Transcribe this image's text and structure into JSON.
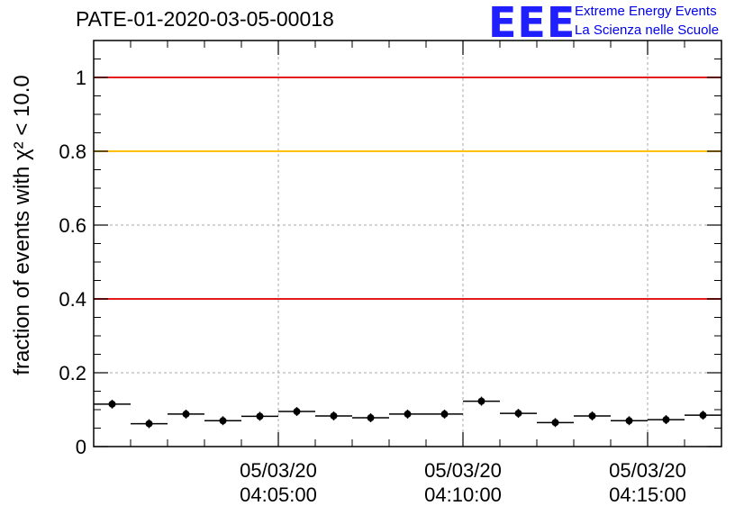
{
  "chart_data": {
    "type": "scatter",
    "title": "PATE-01-2020-03-05-00018",
    "ylabel": "fraction of events with χ² < 10.0",
    "xlabel": "",
    "ylim": [
      0,
      1.1
    ],
    "grid": true,
    "x_tick_labels": [
      {
        "date": "05/03/20",
        "time": "04:05:00"
      },
      {
        "date": "05/03/20",
        "time": "04:10:00"
      },
      {
        "date": "05/03/20",
        "time": "04:15:00"
      }
    ],
    "y_tick_labels": [
      "0",
      "0.2",
      "0.4",
      "0.6",
      "0.8",
      "1"
    ],
    "y_ticks": [
      0,
      0.2,
      0.4,
      0.6,
      0.8,
      1.0
    ],
    "reference_lines": [
      {
        "y": 1.0,
        "color": "#e31a1c"
      },
      {
        "y": 0.8,
        "color": "#ffc000"
      },
      {
        "y": 0.4,
        "color": "#e31a1c"
      }
    ],
    "points": [
      {
        "x": "04:00:30",
        "y": 0.115
      },
      {
        "x": "04:01:30",
        "y": 0.062
      },
      {
        "x": "04:02:30",
        "y": 0.088
      },
      {
        "x": "04:03:30",
        "y": 0.07
      },
      {
        "x": "04:04:30",
        "y": 0.082
      },
      {
        "x": "04:05:30",
        "y": 0.095
      },
      {
        "x": "04:06:30",
        "y": 0.083
      },
      {
        "x": "04:07:30",
        "y": 0.078
      },
      {
        "x": "04:08:30",
        "y": 0.088
      },
      {
        "x": "04:09:30",
        "y": 0.088
      },
      {
        "x": "04:10:30",
        "y": 0.123
      },
      {
        "x": "04:11:30",
        "y": 0.09
      },
      {
        "x": "04:12:30",
        "y": 0.065
      },
      {
        "x": "04:13:30",
        "y": 0.083
      },
      {
        "x": "04:14:30",
        "y": 0.07
      },
      {
        "x": "04:15:30",
        "y": 0.073
      },
      {
        "x": "04:16:30",
        "y": 0.085
      }
    ],
    "error": 0.012,
    "x_range": [
      "04:00:00",
      "04:17:00"
    ],
    "colors": {
      "point": "#000000",
      "grid": "#aaaaaa"
    }
  },
  "logo": {
    "mark": "EEE",
    "line1": "Extreme Energy Events",
    "line2": "La Scienza nelle Scuole"
  }
}
